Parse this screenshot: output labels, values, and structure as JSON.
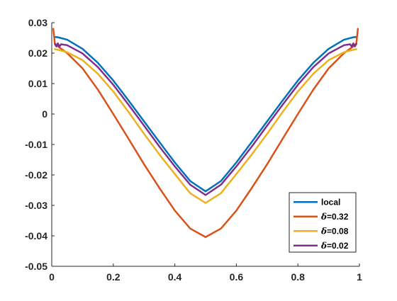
{
  "chart_data": {
    "type": "line",
    "title": "",
    "xlabel": "",
    "ylabel": "",
    "xlim": [
      0,
      1
    ],
    "ylim": [
      -0.05,
      0.03
    ],
    "xticks": [
      0,
      0.2,
      0.4,
      0.6,
      0.8,
      1
    ],
    "xtick_labels": [
      "0",
      "0.2",
      "0.4",
      "0.6",
      "0.8",
      "1"
    ],
    "yticks": [
      -0.05,
      -0.04,
      -0.03,
      -0.02,
      -0.01,
      0,
      0.01,
      0.02,
      0.03
    ],
    "ytick_labels": [
      "-0.05",
      "-0.04",
      "-0.03",
      "-0.02",
      "-0.01",
      "0",
      "0.01",
      "0.02",
      "0.03"
    ],
    "grid": false,
    "legend_position": "bottom-right",
    "series": [
      {
        "name": "local",
        "legend_prefix": "",
        "legend_text": "local",
        "color": "#0072BD",
        "x": [
          0.01,
          0.02,
          0.05,
          0.1,
          0.15,
          0.2,
          0.25,
          0.3,
          0.35,
          0.4,
          0.45,
          0.5,
          0.55,
          0.6,
          0.65,
          0.7,
          0.75,
          0.8,
          0.85,
          0.9,
          0.95,
          0.98,
          0.99
        ],
        "y": [
          0.0253,
          0.0252,
          0.0244,
          0.0214,
          0.0168,
          0.011,
          0.0044,
          -0.0024,
          -0.0092,
          -0.0159,
          -0.022,
          -0.0254,
          -0.022,
          -0.0159,
          -0.0092,
          -0.0024,
          0.0044,
          0.011,
          0.0168,
          0.0214,
          0.0244,
          0.0252,
          0.0253
        ]
      },
      {
        "name": "δ=0.32",
        "legend_prefix": "δ",
        "legend_text": "=0.32",
        "color": "#D95319",
        "x": [
          0.005,
          0.01,
          0.02,
          0.05,
          0.1,
          0.15,
          0.2,
          0.25,
          0.3,
          0.35,
          0.4,
          0.45,
          0.5,
          0.55,
          0.6,
          0.65,
          0.7,
          0.75,
          0.8,
          0.85,
          0.9,
          0.95,
          0.98,
          0.99,
          0.995
        ],
        "y": [
          0.028,
          0.0232,
          0.0222,
          0.02,
          0.015,
          0.008,
          0.0,
          -0.0082,
          -0.0165,
          -0.0243,
          -0.0317,
          -0.0376,
          -0.0404,
          -0.0376,
          -0.0317,
          -0.0243,
          -0.0165,
          -0.0082,
          0.0,
          0.008,
          0.015,
          0.02,
          0.0222,
          0.0232,
          0.028
        ]
      },
      {
        "name": "δ=0.08",
        "legend_prefix": "δ",
        "legend_text": "=0.08",
        "color": "#EDB120",
        "x": [
          0.01,
          0.02,
          0.05,
          0.1,
          0.15,
          0.2,
          0.25,
          0.3,
          0.35,
          0.4,
          0.45,
          0.5,
          0.55,
          0.6,
          0.65,
          0.7,
          0.75,
          0.8,
          0.85,
          0.9,
          0.95,
          0.98,
          0.99
        ],
        "y": [
          0.0213,
          0.0211,
          0.0203,
          0.0177,
          0.0132,
          0.0074,
          0.0006,
          -0.0065,
          -0.0133,
          -0.0197,
          -0.026,
          -0.0292,
          -0.026,
          -0.0197,
          -0.0133,
          -0.0065,
          0.0006,
          0.0074,
          0.0132,
          0.0177,
          0.0203,
          0.0211,
          0.0213
        ]
      },
      {
        "name": "δ=0.02",
        "legend_prefix": "δ",
        "legend_text": "=0.02",
        "color": "#7E2F8E",
        "x": [
          0.01,
          0.015,
          0.02,
          0.025,
          0.03,
          0.05,
          0.1,
          0.15,
          0.2,
          0.25,
          0.3,
          0.35,
          0.4,
          0.45,
          0.5,
          0.55,
          0.6,
          0.65,
          0.7,
          0.75,
          0.8,
          0.85,
          0.9,
          0.95,
          0.97,
          0.975,
          0.98,
          0.985,
          0.99
        ],
        "y": [
          0.023,
          0.0222,
          0.0232,
          0.0221,
          0.0229,
          0.0226,
          0.0199,
          0.0154,
          0.0096,
          0.003,
          -0.0038,
          -0.0107,
          -0.0172,
          -0.0232,
          -0.0266,
          -0.0232,
          -0.0172,
          -0.0107,
          -0.0038,
          0.003,
          0.0096,
          0.0154,
          0.0199,
          0.0226,
          0.0229,
          0.0221,
          0.0232,
          0.0222,
          0.023
        ]
      }
    ]
  }
}
